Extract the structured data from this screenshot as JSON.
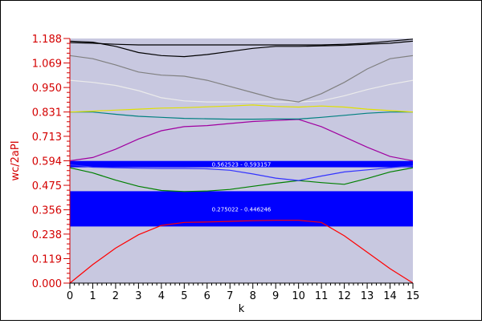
{
  "chart_data": {
    "type": "line",
    "xlabel": "k",
    "ylabel": "wc/2aPI",
    "xlim": [
      0,
      15
    ],
    "ylim": [
      0,
      1.188
    ],
    "x_ticks": [
      "0",
      "1",
      "2",
      "3",
      "4",
      "5",
      "6",
      "7",
      "8",
      "9",
      "10",
      "11",
      "12",
      "13",
      "14",
      "15"
    ],
    "y_ticks": [
      "0.000",
      "0.119",
      "0.238",
      "0.356",
      "0.475",
      "0.594",
      "0.713",
      "0.831",
      "0.950",
      "1.069",
      "1.188"
    ],
    "grid": false,
    "colors": {
      "plot_background": "#c8c8e0",
      "axis_color": "#d40000",
      "band_gap": "#0000ff"
    },
    "band_gaps": [
      {
        "from": 0.275022,
        "to": 0.446246,
        "label": "0.275022 - 0.446246"
      },
      {
        "from": 0.562523,
        "to": 0.593157,
        "label": "0.562523 - 0.593157"
      }
    ],
    "x": [
      0,
      1,
      2,
      3,
      4,
      5,
      6,
      7,
      8,
      9,
      10,
      11,
      12,
      13,
      14,
      15
    ],
    "series": [
      {
        "color": "#ff0000",
        "values": [
          0.0,
          0.09,
          0.17,
          0.235,
          0.28,
          0.295,
          0.297,
          0.3,
          0.303,
          0.305,
          0.305,
          0.295,
          0.23,
          0.15,
          0.07,
          0.0
        ]
      },
      {
        "color": "#008000",
        "values": [
          0.56,
          0.535,
          0.5,
          0.47,
          0.45,
          0.445,
          0.447,
          0.455,
          0.47,
          0.485,
          0.498,
          0.488,
          0.48,
          0.508,
          0.54,
          0.56
        ]
      },
      {
        "color": "#3333ff",
        "values": [
          0.575,
          0.563,
          0.56,
          0.558,
          0.557,
          0.557,
          0.555,
          0.548,
          0.53,
          0.51,
          0.498,
          0.52,
          0.54,
          0.55,
          0.56,
          0.57
        ]
      },
      {
        "color": "#a000a0",
        "values": [
          0.594,
          0.61,
          0.65,
          0.7,
          0.74,
          0.76,
          0.765,
          0.775,
          0.785,
          0.79,
          0.795,
          0.76,
          0.71,
          0.66,
          0.615,
          0.594
        ]
      },
      {
        "color": "#008080",
        "values": [
          0.831,
          0.831,
          0.82,
          0.81,
          0.805,
          0.8,
          0.798,
          0.796,
          0.796,
          0.797,
          0.797,
          0.805,
          0.815,
          0.825,
          0.831,
          0.831
        ]
      },
      {
        "color": "#e0e000",
        "values": [
          0.831,
          0.835,
          0.84,
          0.845,
          0.85,
          0.852,
          0.856,
          0.86,
          0.865,
          0.858,
          0.855,
          0.86,
          0.855,
          0.845,
          0.838,
          0.831
        ]
      },
      {
        "color": "#ebebeb",
        "values": [
          0.985,
          0.975,
          0.96,
          0.935,
          0.9,
          0.885,
          0.88,
          0.88,
          0.88,
          0.88,
          0.88,
          0.885,
          0.91,
          0.94,
          0.965,
          0.985
        ]
      },
      {
        "color": "#808080",
        "values": [
          1.105,
          1.09,
          1.06,
          1.025,
          1.01,
          1.005,
          0.985,
          0.955,
          0.925,
          0.895,
          0.88,
          0.92,
          0.975,
          1.04,
          1.09,
          1.105
        ]
      },
      {
        "color": "#000000",
        "values": [
          1.175,
          1.17,
          1.15,
          1.12,
          1.105,
          1.1,
          1.11,
          1.125,
          1.14,
          1.15,
          1.15,
          1.152,
          1.155,
          1.16,
          1.165,
          1.175
        ]
      },
      {
        "color": "#000000",
        "values": [
          1.168,
          1.165,
          1.16,
          1.157,
          1.157,
          1.157,
          1.157,
          1.157,
          1.157,
          1.157,
          1.157,
          1.157,
          1.16,
          1.165,
          1.175,
          1.185
        ]
      }
    ]
  }
}
